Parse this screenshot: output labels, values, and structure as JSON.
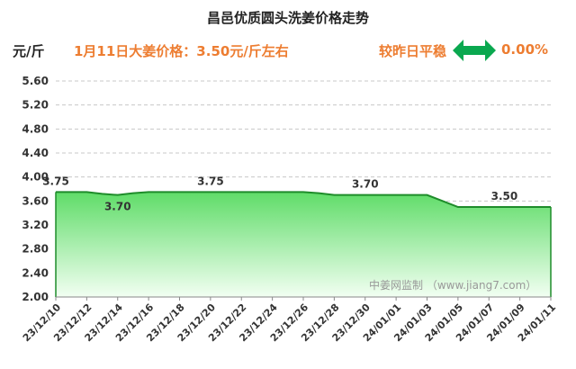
{
  "header": {
    "title": "昌邑优质圆头洗姜价格走势",
    "unit": "元/斤",
    "price_note": "1月11日大姜价格：3.50元/斤左右",
    "compare_label": "较昨日平稳",
    "compare_value": "0.00%",
    "compare_icon": "double-arrow-icon"
  },
  "watermark": "中姜网监制 （www.jiang7.com）",
  "colors": {
    "fill_top": "#5fdc68",
    "fill_bottom": "#f2fff2",
    "line": "#1e8c2a",
    "accent": "#ed7d31",
    "arrow": "#0aa84f"
  },
  "chart_data": {
    "type": "area",
    "title": "昌邑优质圆头洗姜价格走势",
    "ylabel": "元/斤",
    "ylim": [
      2.0,
      5.6
    ],
    "yticks": [
      2.0,
      2.4,
      2.8,
      3.2,
      3.6,
      4.0,
      4.4,
      4.8,
      5.2,
      5.6
    ],
    "xticks": [
      "23/12/10",
      "23/12/12",
      "23/12/14",
      "23/12/16",
      "23/12/18",
      "23/12/20",
      "23/12/22",
      "23/12/24",
      "23/12/26",
      "23/12/28",
      "23/12/30",
      "24/01/01",
      "24/01/03",
      "24/01/05",
      "24/01/07",
      "24/01/09",
      "24/01/11"
    ],
    "x": [
      "23/12/10",
      "23/12/11",
      "23/12/12",
      "23/12/13",
      "23/12/14",
      "23/12/15",
      "23/12/16",
      "23/12/17",
      "23/12/18",
      "23/12/19",
      "23/12/20",
      "23/12/21",
      "23/12/22",
      "23/12/23",
      "23/12/24",
      "23/12/25",
      "23/12/26",
      "23/12/27",
      "23/12/28",
      "23/12/29",
      "23/12/30",
      "23/12/31",
      "24/01/01",
      "24/01/02",
      "24/01/03",
      "24/01/04",
      "24/01/05",
      "24/01/06",
      "24/01/07",
      "24/01/08",
      "24/01/09",
      "24/01/10",
      "24/01/11"
    ],
    "values": [
      3.75,
      3.75,
      3.75,
      3.72,
      3.7,
      3.73,
      3.75,
      3.75,
      3.75,
      3.75,
      3.75,
      3.75,
      3.75,
      3.75,
      3.75,
      3.75,
      3.75,
      3.73,
      3.7,
      3.7,
      3.7,
      3.7,
      3.7,
      3.7,
      3.7,
      3.6,
      3.5,
      3.5,
      3.5,
      3.5,
      3.5,
      3.5,
      3.5
    ],
    "data_labels": [
      {
        "x": "23/12/10",
        "text": "3.75",
        "pos": "above"
      },
      {
        "x": "23/12/14",
        "text": "3.70",
        "pos": "below"
      },
      {
        "x": "23/12/20",
        "text": "3.75",
        "pos": "above"
      },
      {
        "x": "23/12/30",
        "text": "3.70",
        "pos": "above"
      },
      {
        "x": "24/01/08",
        "text": "3.50",
        "pos": "above"
      }
    ],
    "grid": true
  }
}
